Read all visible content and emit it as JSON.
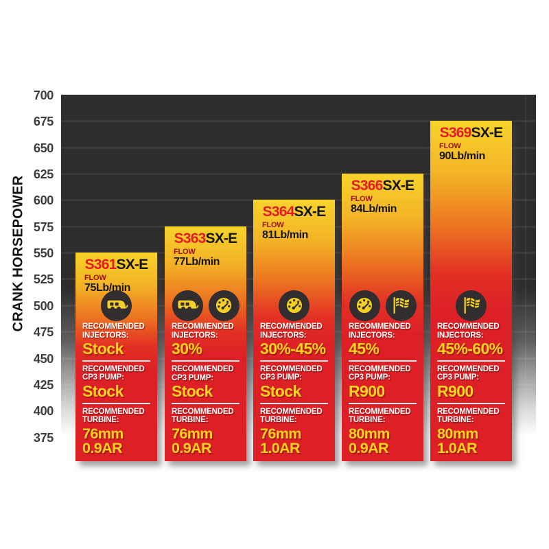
{
  "y_axis": {
    "title": "CRANK HORSEPOWER",
    "ticks": [
      "700",
      "675",
      "650",
      "625",
      "600",
      "575",
      "550",
      "525",
      "500",
      "475",
      "450",
      "425",
      "400",
      "375"
    ]
  },
  "colors": {
    "plot_background": "#2f2c2d",
    "bar_red": "#dd2026",
    "bar_yellow": "#f7d32b",
    "model_red": "#e31c25",
    "value_yellow": "#ffd41e",
    "icon_circle": "#322e2f",
    "label_white": "#ffffff",
    "tick_gray": "#3c3c3c"
  },
  "chart_data": {
    "type": "bar",
    "title": "",
    "xlabel": "",
    "ylabel": "CRANK HORSEPOWER",
    "ylim": [
      375,
      700
    ],
    "grid": true,
    "legend": "none",
    "categories": [
      "S361SX-E",
      "S363SX-E",
      "S364SX-E",
      "S366SX-E",
      "S369SX-E"
    ],
    "values": [
      550,
      575,
      600,
      625,
      675
    ],
    "bars": [
      {
        "model": "S361",
        "suffix": "SX-E",
        "top_hp": 550,
        "flow_label": "FLOW",
        "flow_value": "75Lb/min",
        "icons": [
          "camper-icon"
        ],
        "sections": [
          {
            "label_lines": [
              "RECOMMENDED",
              "INJECTORS:"
            ],
            "value_lines": [
              "Stock"
            ]
          },
          {
            "label_lines": [
              "RECOMMENDED",
              "CP3 PUMP:"
            ],
            "value_lines": [
              "Stock"
            ]
          },
          {
            "label_lines": [
              "RECOMMENDED",
              "TURBINE:"
            ],
            "value_lines": [
              "76mm",
              "0.9AR"
            ]
          }
        ]
      },
      {
        "model": "S363",
        "suffix": "SX-E",
        "top_hp": 575,
        "flow_label": "FLOW",
        "flow_value": "77Lb/min",
        "icons": [
          "camper-icon",
          "gauge-icon"
        ],
        "sections": [
          {
            "label_lines": [
              "RECOMMENDED",
              "INJECTORS:"
            ],
            "value_lines": [
              "30%"
            ]
          },
          {
            "label_lines": [
              "RECOMMENDED",
              "CP3 PUMP:"
            ],
            "value_lines": [
              "Stock"
            ]
          },
          {
            "label_lines": [
              "RECOMMENDED",
              "TURBINE:"
            ],
            "value_lines": [
              "76mm",
              "0.9AR"
            ]
          }
        ]
      },
      {
        "model": "S364",
        "suffix": "SX-E",
        "top_hp": 600,
        "flow_label": "FLOW",
        "flow_value": "81Lb/min",
        "icons": [
          "gauge-icon"
        ],
        "sections": [
          {
            "label_lines": [
              "RECOMMENDED",
              "INJECTORS:"
            ],
            "value_lines": [
              "30%-45%"
            ]
          },
          {
            "label_lines": [
              "RECOMMENDED",
              "CP3 PUMP:"
            ],
            "value_lines": [
              "Stock"
            ]
          },
          {
            "label_lines": [
              "RECOMMENDED",
              "TURBINE:"
            ],
            "value_lines": [
              "76mm",
              "1.0AR"
            ]
          }
        ]
      },
      {
        "model": "S366",
        "suffix": "SX-E",
        "top_hp": 625,
        "flow_label": "FLOW",
        "flow_value": "84Lb/min",
        "icons": [
          "gauge-icon",
          "flag-icon"
        ],
        "sections": [
          {
            "label_lines": [
              "RECOMMENDED",
              "INJECTORS:"
            ],
            "value_lines": [
              "45%"
            ]
          },
          {
            "label_lines": [
              "RECOMMENDED",
              "CP3 PUMP:"
            ],
            "value_lines": [
              "R900"
            ]
          },
          {
            "label_lines": [
              "RECOMMENDED",
              "TURBINE:"
            ],
            "value_lines": [
              "80mm",
              "0.9AR"
            ]
          }
        ]
      },
      {
        "model": "S369",
        "suffix": "SX-E",
        "top_hp": 675,
        "flow_label": "FLOW",
        "flow_value": "90Lb/min",
        "icons": [
          "flag-icon"
        ],
        "sections": [
          {
            "label_lines": [
              "RECOMMENDED",
              "INJECTORS:"
            ],
            "value_lines": [
              "45%-60%"
            ]
          },
          {
            "label_lines": [
              "RECOMMENDED",
              "CP3 PUMP:"
            ],
            "value_lines": [
              "R900"
            ]
          },
          {
            "label_lines": [
              "RECOMMENDED",
              "TURBINE:"
            ],
            "value_lines": [
              "80mm",
              "1.0AR"
            ]
          }
        ]
      }
    ]
  }
}
